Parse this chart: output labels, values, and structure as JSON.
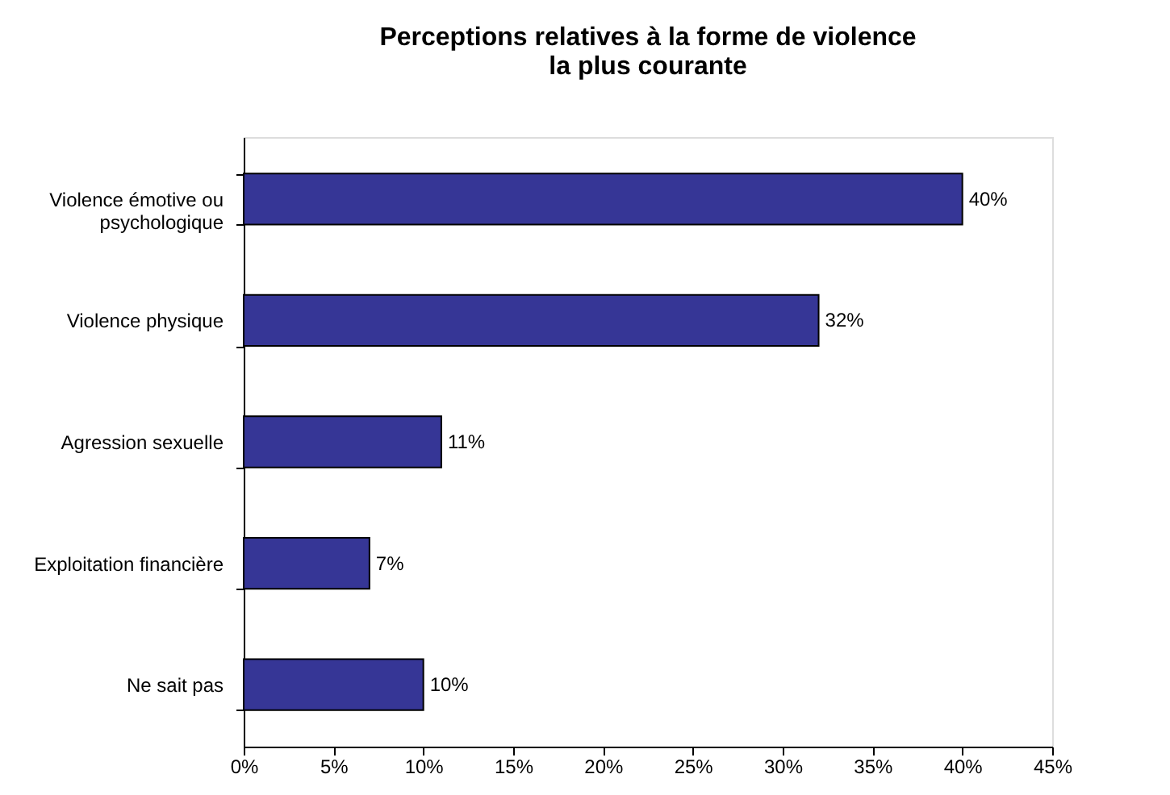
{
  "chart_data": {
    "type": "bar",
    "orientation": "horizontal",
    "title": [
      "Perceptions relatives à la forme de violence",
      "la plus courante"
    ],
    "categories": [
      "Violence émotive ou psychologique",
      "Violence physique",
      "Agression sexuelle",
      "Exploitation financière",
      "Ne sait pas"
    ],
    "values": [
      40,
      32,
      11,
      7,
      10
    ],
    "color": "#363696",
    "data_labels": true,
    "value_labels": [
      "40%",
      "32%",
      "11%",
      "7%",
      "10%"
    ],
    "xlim": [
      0,
      45
    ],
    "xticks": [
      {
        "value": 0,
        "label": "0%"
      },
      {
        "value": 5,
        "label": "5%"
      },
      {
        "value": 10,
        "label": "10%"
      },
      {
        "value": 15,
        "label": "15%"
      },
      {
        "value": 20,
        "label": "20%"
      },
      {
        "value": 25,
        "label": "25%"
      },
      {
        "value": 30,
        "label": "30%"
      },
      {
        "value": 35,
        "label": "35%"
      },
      {
        "value": 40,
        "label": "40%"
      },
      {
        "value": 45,
        "label": "45%"
      }
    ],
    "grid": false
  }
}
